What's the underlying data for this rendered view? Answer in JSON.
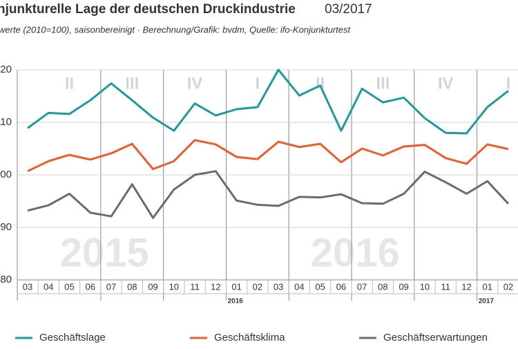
{
  "chart_data": {
    "type": "line",
    "title": "njunkturelle Lage der deutschen Druckindustrie",
    "title_date": "03/2017",
    "subtitle": "werte (2010=100), saisonbereinigt · Berechnung/Grafik: bvdm, Quelle: ifo-Konjunkturtest",
    "categories": [
      "03",
      "04",
      "05",
      "06",
      "07",
      "08",
      "09",
      "10",
      "11",
      "12",
      "01",
      "02",
      "03",
      "04",
      "05",
      "06",
      "07",
      "08",
      "09",
      "10",
      "11",
      "12",
      "01",
      "02"
    ],
    "year_labels": [
      "2016",
      "2017"
    ],
    "watermarks": [
      "2015",
      "2016"
    ],
    "quarters": [
      "II",
      "III",
      "IV",
      "I",
      "II",
      "III",
      "IV",
      "I"
    ],
    "ylim": [
      80,
      120
    ],
    "yticks": [
      80,
      90,
      100,
      110,
      120
    ],
    "grid": true,
    "series": [
      {
        "name": "Geschäftslage",
        "color": "#1c9a9c",
        "values": [
          108.9,
          111.8,
          111.6,
          114.2,
          117.4,
          114.2,
          110.9,
          108.4,
          113.6,
          111.3,
          112.5,
          112.9,
          120,
          115.1,
          117,
          108.4,
          116.4,
          113.8,
          114.7,
          110.8,
          108,
          107.9,
          112.9,
          116
        ]
      },
      {
        "name": "Geschäftsklima",
        "color": "#f05a28",
        "values": [
          100.7,
          102.6,
          103.8,
          102.9,
          104.1,
          105.9,
          101.1,
          102.6,
          106.6,
          105.8,
          103.4,
          103,
          106.3,
          105.3,
          105.9,
          102.4,
          105,
          103.7,
          105.4,
          105.7,
          103.2,
          102.1,
          105.8,
          104.9
        ]
      },
      {
        "name": "Geschäftserwartungen",
        "color": "#6b6b6b",
        "values": [
          93.2,
          94.2,
          96.4,
          92.8,
          92.1,
          98.2,
          91.8,
          97.2,
          100,
          100.7,
          95.1,
          94.3,
          94.1,
          95.8,
          95.7,
          96.3,
          94.6,
          94.5,
          96.4,
          100.6,
          98.6,
          96.4,
          98.8,
          94.5
        ]
      }
    ]
  }
}
